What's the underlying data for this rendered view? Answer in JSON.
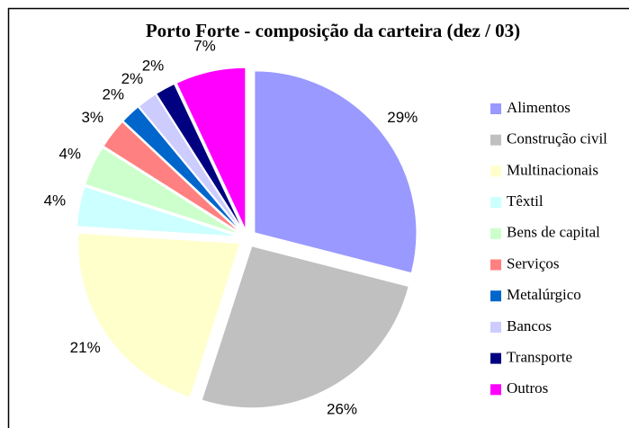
{
  "chart_data": {
    "type": "pie",
    "title": "Porto Forte - composição da carteira (dez / 03)",
    "categories": [
      "Alimentos",
      "Construção civil",
      "Multinacionais",
      "Têxtil",
      "Bens de capital",
      "Serviços",
      "Metalúrgico",
      "Bancos",
      "Transporte",
      "Outros"
    ],
    "values": [
      29,
      26,
      21,
      4,
      4,
      3,
      2,
      2,
      2,
      7
    ],
    "value_labels": [
      "29%",
      "26%",
      "21%",
      "4%",
      "4%",
      "3%",
      "2%",
      "2%",
      "2%",
      "7%"
    ],
    "colors": [
      "#9999ff",
      "#c0c0c0",
      "#ffffcc",
      "#ccffff",
      "#ccffcc",
      "#ff8080",
      "#0066cc",
      "#ccccff",
      "#000080",
      "#ff00ff"
    ],
    "legend": "right"
  }
}
